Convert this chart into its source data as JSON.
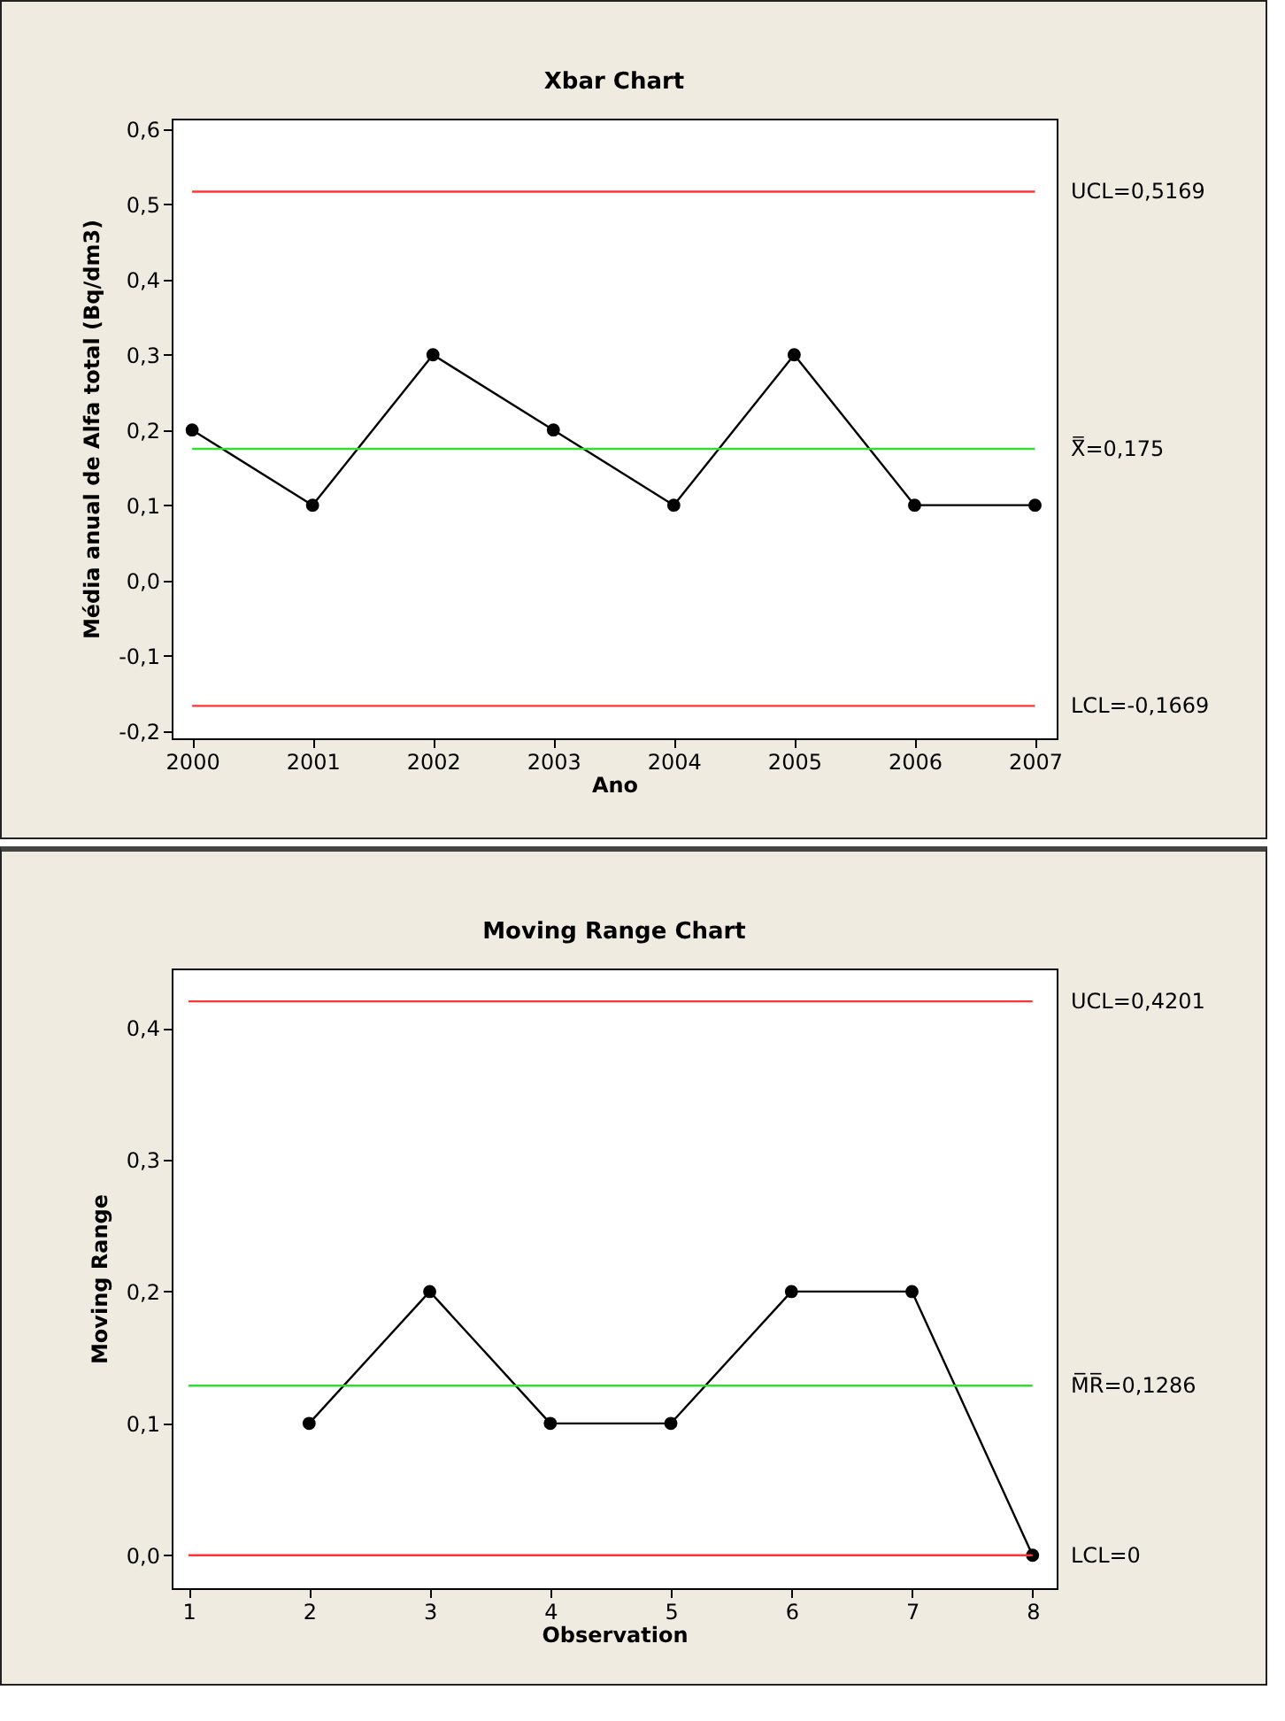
{
  "chart_data": [
    {
      "type": "line",
      "title": "Xbar Chart",
      "xlabel": "Ano",
      "ylabel": "Média anual de Alfa total (Bq/dm3)",
      "x": [
        2000,
        2001,
        2002,
        2003,
        2004,
        2005,
        2006,
        2007
      ],
      "values": [
        0.2,
        0.1,
        0.3,
        0.2,
        0.1,
        0.3,
        0.1,
        0.1
      ],
      "color": "#000000",
      "marker": "circle",
      "xlim": [
        1999.83,
        2007.18
      ],
      "xticks": [
        2000,
        2001,
        2002,
        2003,
        2004,
        2005,
        2006,
        2007
      ],
      "ylim": [
        -0.21,
        0.614
      ],
      "yticks": [
        {
          "value": -0.2,
          "label": "-0,2"
        },
        {
          "value": -0.1,
          "label": "-0,1"
        },
        {
          "value": 0,
          "label": "0,0"
        },
        {
          "value": 0.1,
          "label": "0,1"
        },
        {
          "value": 0.2,
          "label": "0,2"
        },
        {
          "value": 0.3,
          "label": "0,3"
        },
        {
          "value": 0.4,
          "label": "0,4"
        },
        {
          "value": 0.5,
          "label": "0,5"
        },
        {
          "value": 0.6,
          "label": "0,6"
        }
      ],
      "ref_lines": [
        {
          "axis": "y",
          "value": 0.5169,
          "label": "UCL=0,5169",
          "color": "#ff3333"
        },
        {
          "axis": "y",
          "value": 0.175,
          "label": "X̿=0,175",
          "color": "#33dd33"
        },
        {
          "axis": "y",
          "value": -0.1669,
          "label": "LCL=-0,1669",
          "color": "#ff3333"
        }
      ]
    },
    {
      "type": "line",
      "title": "Moving Range Chart",
      "xlabel": "Observation",
      "ylabel": "Moving Range",
      "x": [
        2,
        3,
        4,
        5,
        6,
        7,
        8
      ],
      "values": [
        0.1,
        0.2,
        0.1,
        0.1,
        0.2,
        0.2,
        0.0
      ],
      "color": "#000000",
      "marker": "circle",
      "xlim": [
        0.86,
        8.2
      ],
      "xticks": [
        1,
        2,
        3,
        4,
        5,
        6,
        7,
        8
      ],
      "ylim": [
        -0.025,
        0.445
      ],
      "yticks": [
        {
          "value": 0,
          "label": "0,0"
        },
        {
          "value": 0.1,
          "label": "0,1"
        },
        {
          "value": 0.2,
          "label": "0,2"
        },
        {
          "value": 0.3,
          "label": "0,3"
        },
        {
          "value": 0.4,
          "label": "0,4"
        }
      ],
      "ref_lines": [
        {
          "axis": "y",
          "value": 0.4201,
          "label": "UCL=0,4201",
          "color": "#ff3333"
        },
        {
          "axis": "y",
          "value": 0.1286,
          "label": "M̅R̅=0,1286",
          "color": "#33dd33"
        },
        {
          "axis": "y",
          "value": 0,
          "label": "LCL=0",
          "color": "#ff3333"
        }
      ]
    }
  ]
}
